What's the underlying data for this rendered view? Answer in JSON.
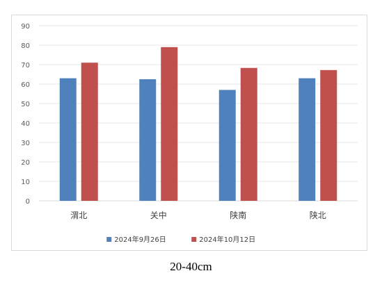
{
  "chart_data": {
    "type": "bar",
    "title": "",
    "xlabel": "",
    "ylabel": "",
    "categories": [
      "渭北",
      "关中",
      "陕南",
      "陕北"
    ],
    "series": [
      {
        "name": "2024年9月26日",
        "color": "#4f81bd",
        "values": [
          63,
          62.5,
          57,
          63
        ]
      },
      {
        "name": "2024年10月12日",
        "color": "#c0504d",
        "values": [
          71,
          79,
          68.3,
          67.2
        ]
      }
    ],
    "ylim": [
      0,
      90
    ],
    "yticks": [
      0,
      10,
      20,
      30,
      40,
      50,
      60,
      70,
      80,
      90
    ],
    "grid": true,
    "legend_position": "bottom"
  },
  "caption": "20-40cm"
}
